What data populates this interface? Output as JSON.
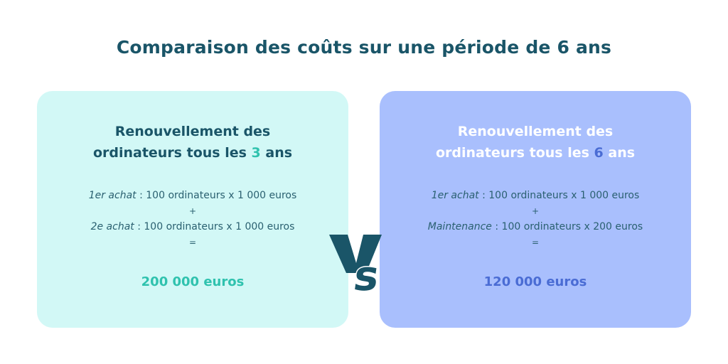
{
  "title": "Comparaison des coûts sur une période de 6 ans",
  "colors": {
    "title": "#1a5568",
    "left_bg": "#d2f8f6",
    "right_bg": "#a9bffd",
    "teal_accent": "#2fc2ae",
    "blue_accent": "#4a6cd4"
  },
  "left": {
    "heading_line1": "Renouvellement des",
    "heading_line2_pre": "ordinateurs tous les ",
    "heading_number": "3",
    "heading_line2_post": " ans",
    "line1_label": "1er achat",
    "line1_text": " : 100 ordinateurs x 1 000 euros",
    "operator1": "+",
    "line2_label": "2e achat",
    "line2_text": " : 100 ordinateurs x 1 000 euros",
    "operator2": "=",
    "total": "200 000 euros"
  },
  "right": {
    "heading_line1": "Renouvellement des",
    "heading_line2_pre": "ordinateurs tous les ",
    "heading_number": "6",
    "heading_line2_post": " ans",
    "line1_label": "1er achat",
    "line1_text": " : 100 ordinateurs x 1 000 euros",
    "operator1": "+",
    "line2_label": "Maintenance",
    "line2_text": " : 100 ordinateurs x 200 euros",
    "operator2": "=",
    "total": "120 000 euros"
  },
  "vs": "VS"
}
